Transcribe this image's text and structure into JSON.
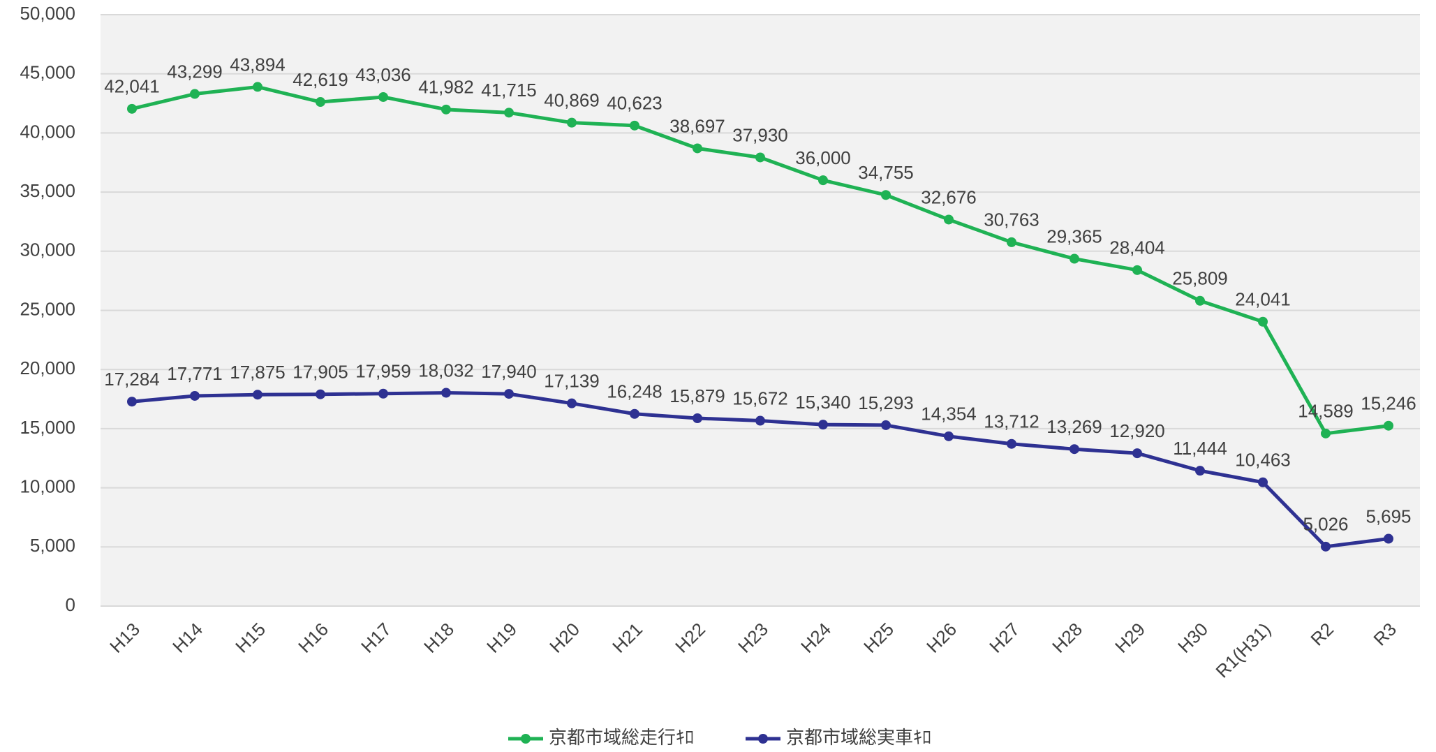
{
  "chart_data": {
    "type": "line",
    "categories": [
      "H13",
      "H14",
      "H15",
      "H16",
      "H17",
      "H18",
      "H19",
      "H20",
      "H21",
      "H22",
      "H23",
      "H24",
      "H25",
      "H26",
      "H27",
      "H28",
      "H29",
      "H30",
      "R1(H31)",
      "R2",
      "R3"
    ],
    "series": [
      {
        "name": "京都市域総走行ｷﾛ",
        "color": "#1fb254",
        "values": [
          42041,
          43299,
          43894,
          42619,
          43036,
          41982,
          41715,
          40869,
          40623,
          38697,
          37930,
          36000,
          34755,
          32676,
          30763,
          29365,
          28404,
          25809,
          24041,
          14589,
          15246
        ],
        "value_labels": [
          "42,041",
          "43,299",
          "43,894",
          "42,619",
          "43,036",
          "41,982",
          "41,715",
          "40,869",
          "40,623",
          "38,697",
          "37,930",
          "36,000",
          "34,755",
          "32,676",
          "30,763",
          "29,365",
          "28,404",
          "25,809",
          "24,041",
          "14,589",
          "15,246"
        ]
      },
      {
        "name": "京都市域総実車ｷﾛ",
        "color": "#2e3192",
        "values": [
          17284,
          17771,
          17875,
          17905,
          17959,
          18032,
          17940,
          17139,
          16248,
          15879,
          15672,
          15340,
          15293,
          14354,
          13712,
          13269,
          12920,
          11444,
          10463,
          5026,
          5695
        ],
        "value_labels": [
          "17,284",
          "17,771",
          "17,875",
          "17,905",
          "17,959",
          "18,032",
          "17,940",
          "17,139",
          "16,248",
          "15,879",
          "15,672",
          "15,340",
          "15,293",
          "14,354",
          "13,712",
          "13,269",
          "12,920",
          "11,444",
          "10,463",
          "5,026",
          "5,695"
        ]
      }
    ],
    "ylim": [
      0,
      50000
    ],
    "yticks": [
      0,
      {
        "value": 5000,
        "label": "5,000"
      },
      {
        "value": 10000,
        "label": "10,000"
      },
      {
        "value": 15000,
        "label": "15,000"
      },
      {
        "value": 20000,
        "label": "20,000"
      },
      {
        "value": 25000,
        "label": "25,000"
      },
      {
        "value": 30000,
        "label": "30,000"
      },
      {
        "value": 35000,
        "label": "35,000"
      },
      {
        "value": 40000,
        "label": "40,000"
      },
      {
        "value": 45000,
        "label": "45,000"
      },
      {
        "value": 50000,
        "label": "50,000"
      }
    ],
    "grid": true,
    "legend": "bottom"
  }
}
